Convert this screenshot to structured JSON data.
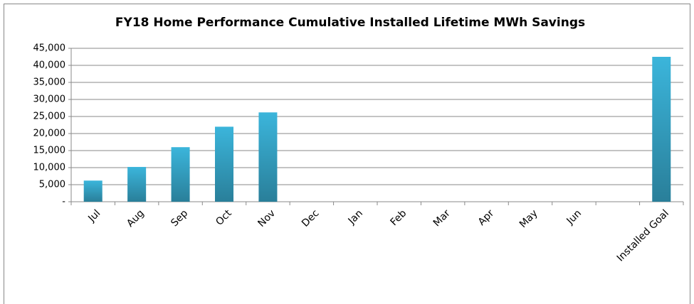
{
  "chart_data": {
    "type": "bar",
    "title": "FY18 Home Performance Cumulative Installed Lifetime MWh Savings",
    "categories": [
      "Jul",
      "Aug",
      "Sep",
      "Oct",
      "Nov",
      "Dec",
      "Jan",
      "Feb",
      "Mar",
      "Apr",
      "May",
      "Jun",
      null,
      "Installed Goal"
    ],
    "values": [
      6200,
      10200,
      16000,
      22000,
      26200,
      null,
      null,
      null,
      null,
      null,
      null,
      null,
      null,
      42500
    ],
    "color": "#3bb5db",
    "ylim": [
      0,
      45000
    ],
    "yticks": [
      {
        "value": 0,
        "label": "-"
      },
      {
        "value": 5000,
        "label": "5,000"
      },
      {
        "value": 10000,
        "label": "10,000"
      },
      {
        "value": 15000,
        "label": "15,000"
      },
      {
        "value": 20000,
        "label": "20,000"
      },
      {
        "value": 25000,
        "label": "25,000"
      },
      {
        "value": 30000,
        "label": "30,000"
      },
      {
        "value": 35000,
        "label": "35,000"
      },
      {
        "value": 40000,
        "label": "40,000"
      },
      {
        "value": 45000,
        "label": "45,000"
      }
    ],
    "grid": true
  }
}
